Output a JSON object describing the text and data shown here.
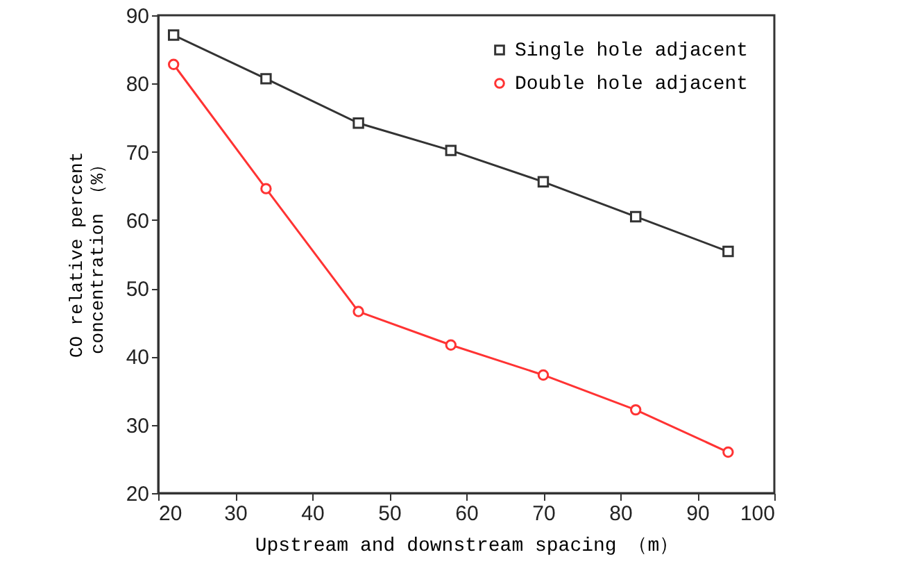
{
  "chart_data": {
    "type": "line",
    "xlabel": "Upstream and downstream spacing （m）",
    "ylabel": "CO relative percent\nconcentration （%）",
    "x": [
      22,
      34,
      46,
      58,
      70,
      82,
      94
    ],
    "series": [
      {
        "name": "Single hole adjacent",
        "color": "#333333",
        "marker": "square",
        "values": [
          87.1,
          80.7,
          74.2,
          70.2,
          65.6,
          60.5,
          55.4
        ]
      },
      {
        "name": "Double hole adjacent",
        "color": "#ff3333",
        "marker": "circle",
        "values": [
          82.8,
          64.6,
          46.6,
          41.7,
          37.3,
          32.2,
          26.0
        ]
      }
    ],
    "xlim": [
      20,
      100
    ],
    "xticks": [
      20,
      30,
      40,
      50,
      60,
      70,
      80,
      90,
      100
    ],
    "ylim": [
      20,
      90
    ],
    "yticks": [
      20,
      30,
      40,
      50,
      60,
      70,
      80,
      90
    ],
    "grid": false,
    "legend": "top right",
    "line_style": "solid"
  }
}
